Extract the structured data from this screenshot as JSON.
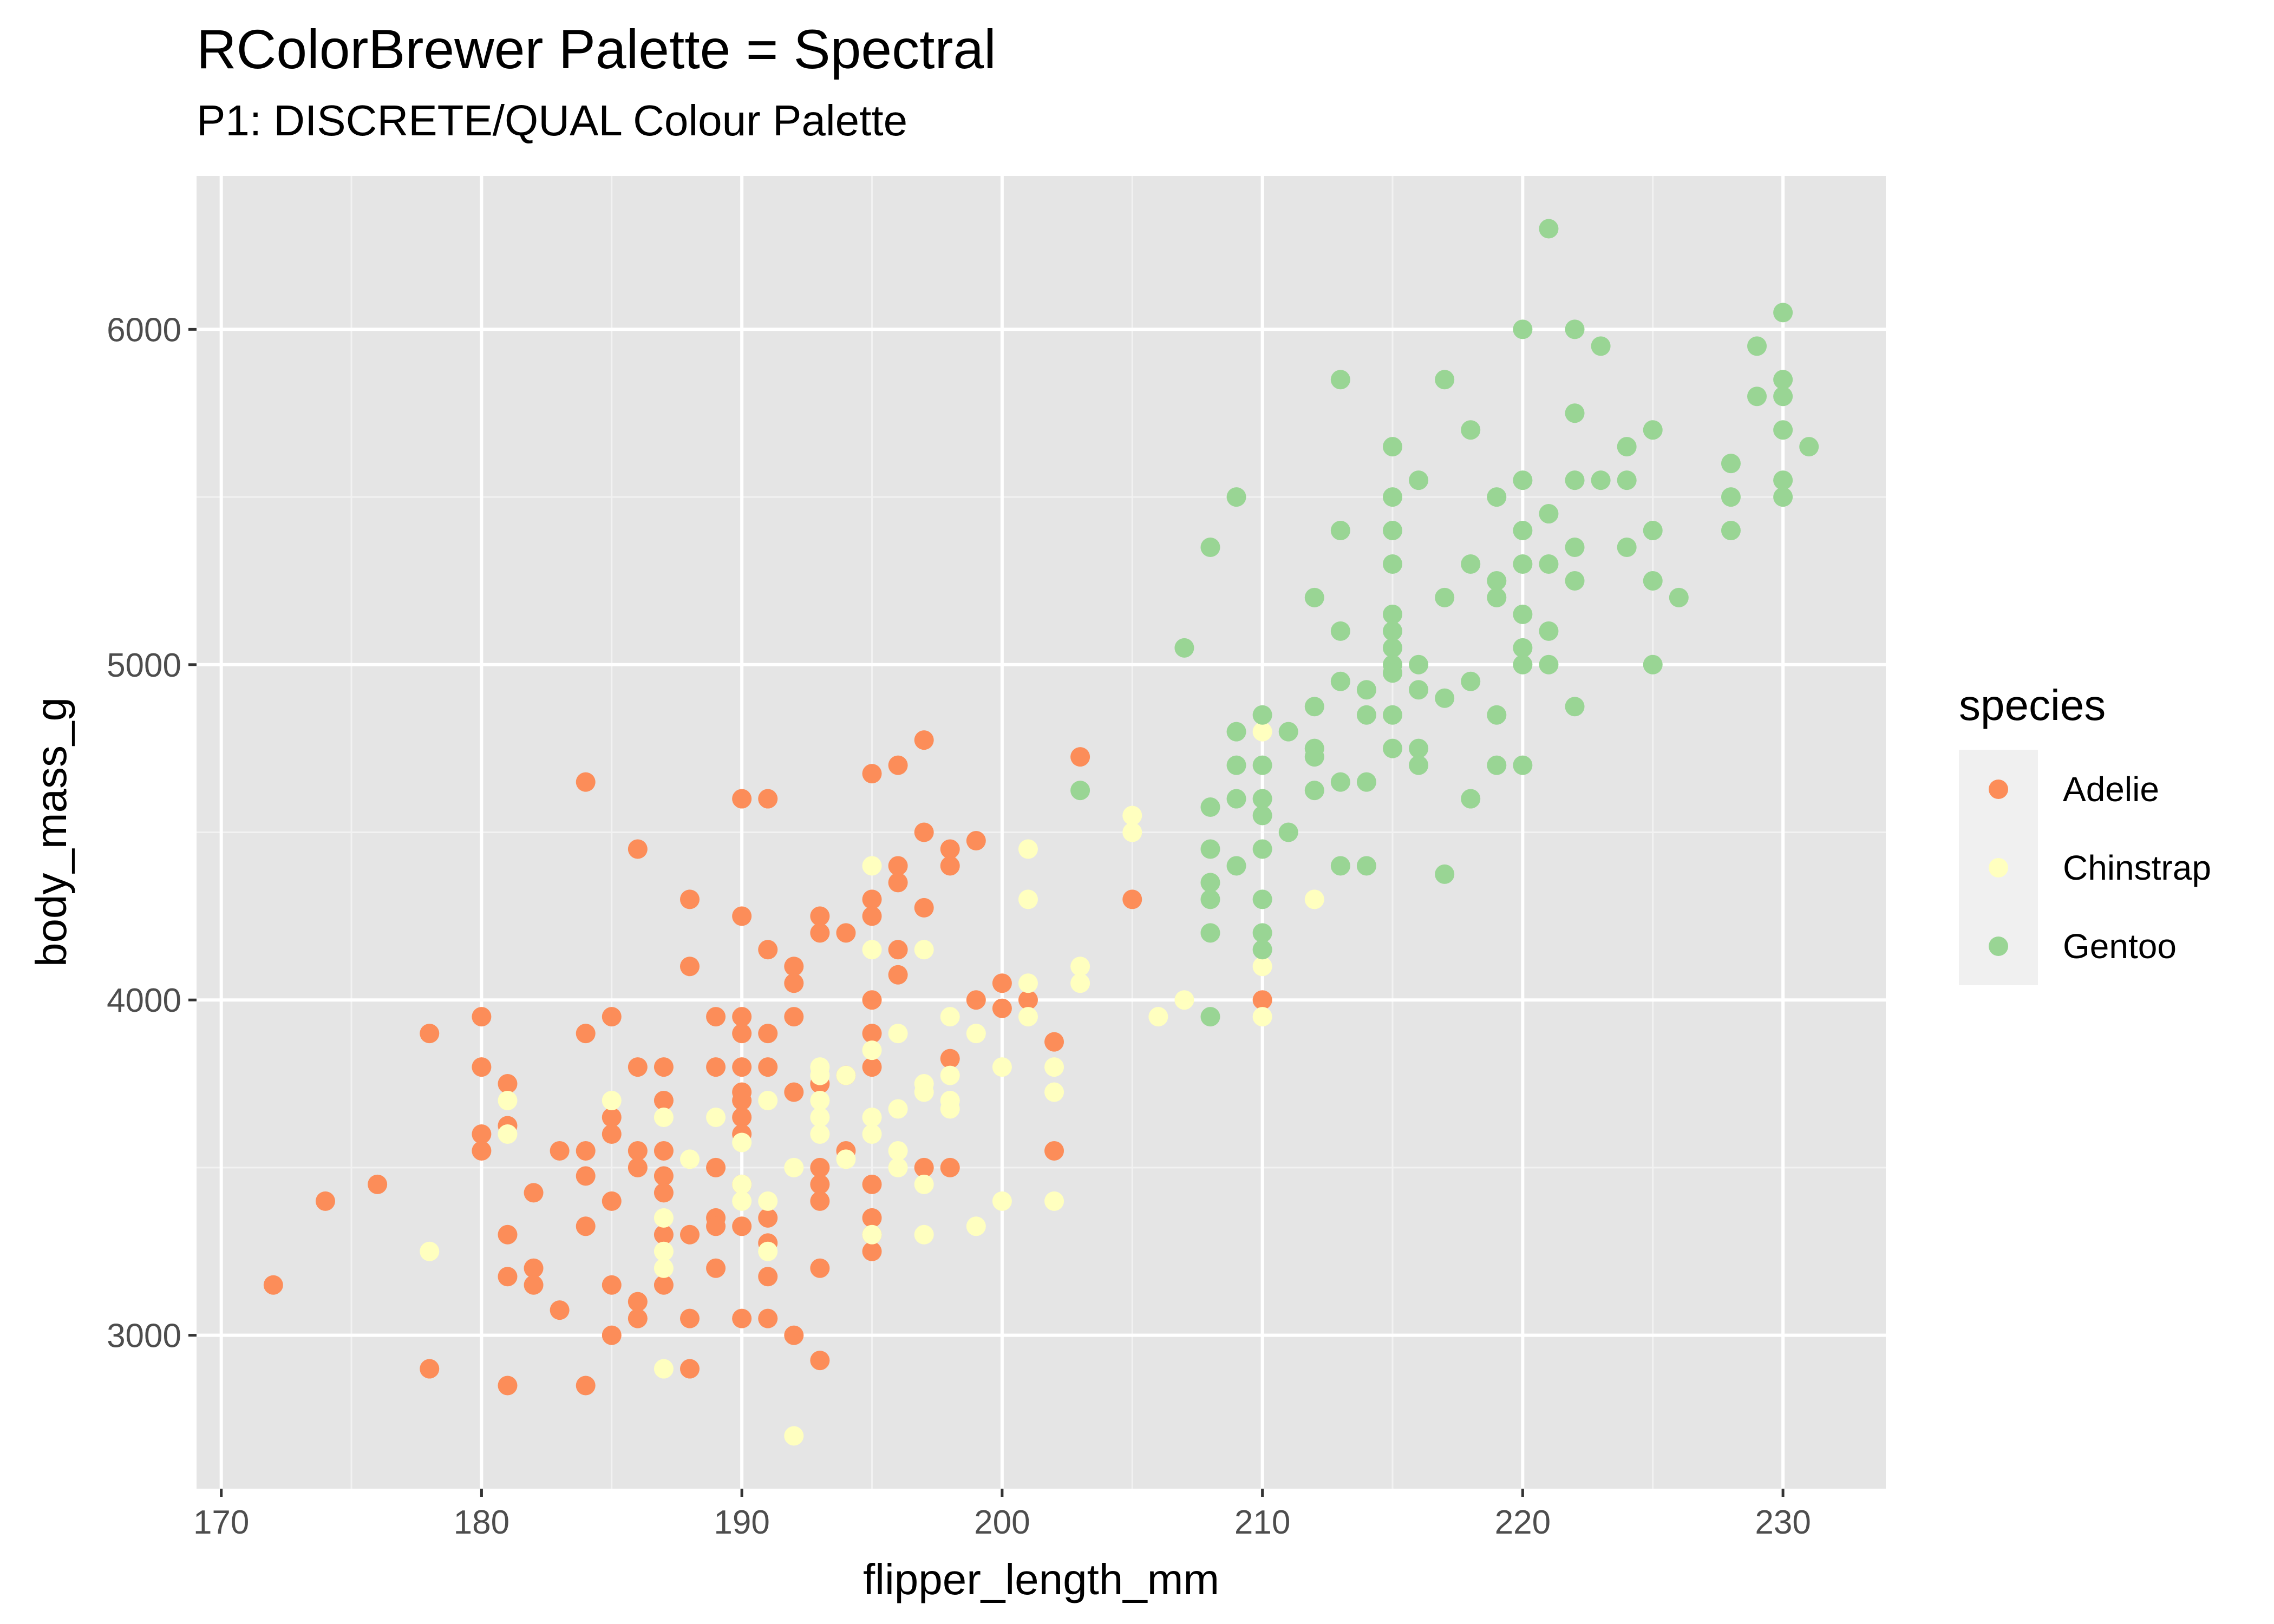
{
  "chart_data": {
    "type": "scatter",
    "title": "RColorBrewer Palette = Spectral",
    "subtitle": "P1: DISCRETE/QUAL Colour Palette",
    "xlabel": "flipper_length_mm",
    "ylabel": "body_mass_g",
    "xlim": [
      169.05,
      233.95
    ],
    "ylim": [
      2542.5,
      6457.5
    ],
    "x_ticks": [
      170,
      180,
      190,
      200,
      210,
      220,
      230
    ],
    "x_tick_labels": [
      "170",
      "180",
      "190",
      "200",
      "210",
      "220",
      "230"
    ],
    "y_ticks": [
      3000,
      4000,
      5000,
      6000
    ],
    "y_tick_labels": [
      "3000",
      "4000",
      "5000",
      "6000"
    ],
    "grid": true,
    "legend": {
      "title": "species",
      "position": "right"
    },
    "series": [
      {
        "name": "Adelie",
        "color": "#FC8D59",
        "points": [
          [
            172,
            3150
          ],
          [
            174,
            3400
          ],
          [
            176,
            3450
          ],
          [
            178,
            3900
          ],
          [
            178,
            2900
          ],
          [
            180,
            3950
          ],
          [
            180,
            3800
          ],
          [
            180,
            3600
          ],
          [
            180,
            3550
          ],
          [
            181,
            3750
          ],
          [
            181,
            3625
          ],
          [
            181,
            3300
          ],
          [
            181,
            3175
          ],
          [
            181,
            2850
          ],
          [
            182,
            3425
          ],
          [
            182,
            3200
          ],
          [
            182,
            3150
          ],
          [
            183,
            3550
          ],
          [
            183,
            3075
          ],
          [
            184,
            4650
          ],
          [
            184,
            3900
          ],
          [
            184,
            3550
          ],
          [
            184,
            3475
          ],
          [
            184,
            3325
          ],
          [
            184,
            2850
          ],
          [
            185,
            3950
          ],
          [
            185,
            3650
          ],
          [
            185,
            3600
          ],
          [
            185,
            3400
          ],
          [
            185,
            3150
          ],
          [
            185,
            3000
          ],
          [
            186,
            4450
          ],
          [
            186,
            3800
          ],
          [
            186,
            3550
          ],
          [
            186,
            3500
          ],
          [
            186,
            3100
          ],
          [
            186,
            3050
          ],
          [
            187,
            3800
          ],
          [
            187,
            3700
          ],
          [
            187,
            3550
          ],
          [
            187,
            3475
          ],
          [
            187,
            3425
          ],
          [
            187,
            3300
          ],
          [
            187,
            3150
          ],
          [
            188,
            4300
          ],
          [
            188,
            4100
          ],
          [
            188,
            3300
          ],
          [
            188,
            3050
          ],
          [
            188,
            2900
          ],
          [
            189,
            3950
          ],
          [
            189,
            3800
          ],
          [
            189,
            3500
          ],
          [
            189,
            3350
          ],
          [
            189,
            3325
          ],
          [
            189,
            3200
          ],
          [
            190,
            4600
          ],
          [
            190,
            4250
          ],
          [
            190,
            3950
          ],
          [
            190,
            3900
          ],
          [
            190,
            3800
          ],
          [
            190,
            3725
          ],
          [
            190,
            3700
          ],
          [
            190,
            3650
          ],
          [
            190,
            3600
          ],
          [
            190,
            3450
          ],
          [
            190,
            3325
          ],
          [
            190,
            3050
          ],
          [
            191,
            4600
          ],
          [
            191,
            4150
          ],
          [
            191,
            3900
          ],
          [
            191,
            3800
          ],
          [
            191,
            3350
          ],
          [
            191,
            3275
          ],
          [
            191,
            3175
          ],
          [
            191,
            3050
          ],
          [
            192,
            4100
          ],
          [
            192,
            4050
          ],
          [
            192,
            3950
          ],
          [
            192,
            3725
          ],
          [
            192,
            3000
          ],
          [
            193,
            4250
          ],
          [
            193,
            4200
          ],
          [
            193,
            3750
          ],
          [
            193,
            3500
          ],
          [
            193,
            3450
          ],
          [
            193,
            3400
          ],
          [
            193,
            3200
          ],
          [
            193,
            2925
          ],
          [
            194,
            4200
          ],
          [
            194,
            3775
          ],
          [
            194,
            3550
          ],
          [
            195,
            4675
          ],
          [
            195,
            4300
          ],
          [
            195,
            4250
          ],
          [
            195,
            4000
          ],
          [
            195,
            3450
          ],
          [
            195,
            3350
          ],
          [
            195,
            3300
          ],
          [
            195,
            3250
          ],
          [
            195,
            3800
          ],
          [
            195,
            3900
          ],
          [
            196,
            4700
          ],
          [
            196,
            4400
          ],
          [
            196,
            4350
          ],
          [
            196,
            4150
          ],
          [
            196,
            4075
          ],
          [
            197,
            4775
          ],
          [
            197,
            4500
          ],
          [
            197,
            4275
          ],
          [
            197,
            3500
          ],
          [
            198,
            4450
          ],
          [
            198,
            4400
          ],
          [
            198,
            3825
          ],
          [
            198,
            3500
          ],
          [
            199,
            4475
          ],
          [
            199,
            4000
          ],
          [
            200,
            4050
          ],
          [
            200,
            3975
          ],
          [
            201,
            4000
          ],
          [
            202,
            3875
          ],
          [
            202,
            3550
          ],
          [
            203,
            4725
          ],
          [
            205,
            4300
          ],
          [
            210,
            4000
          ]
        ]
      },
      {
        "name": "Chinstrap",
        "color": "#FFFFBF",
        "points": [
          [
            178,
            3250
          ],
          [
            181,
            3700
          ],
          [
            181,
            3600
          ],
          [
            185,
            3700
          ],
          [
            187,
            3650
          ],
          [
            187,
            3350
          ],
          [
            187,
            3250
          ],
          [
            187,
            3200
          ],
          [
            187,
            2900
          ],
          [
            188,
            3525
          ],
          [
            189,
            3650
          ],
          [
            190,
            3575
          ],
          [
            190,
            3450
          ],
          [
            190,
            3400
          ],
          [
            191,
            3700
          ],
          [
            191,
            3400
          ],
          [
            191,
            3250
          ],
          [
            192,
            3500
          ],
          [
            192,
            2700
          ],
          [
            193,
            3800
          ],
          [
            193,
            3775
          ],
          [
            193,
            3700
          ],
          [
            193,
            3650
          ],
          [
            193,
            3600
          ],
          [
            194,
            3775
          ],
          [
            194,
            3525
          ],
          [
            195,
            4400
          ],
          [
            195,
            4150
          ],
          [
            195,
            3850
          ],
          [
            195,
            3650
          ],
          [
            195,
            3600
          ],
          [
            195,
            3300
          ],
          [
            196,
            3900
          ],
          [
            196,
            3675
          ],
          [
            196,
            3550
          ],
          [
            196,
            3500
          ],
          [
            197,
            4150
          ],
          [
            197,
            3750
          ],
          [
            197,
            3725
          ],
          [
            197,
            3450
          ],
          [
            197,
            3300
          ],
          [
            198,
            3950
          ],
          [
            198,
            3775
          ],
          [
            198,
            3700
          ],
          [
            198,
            3675
          ],
          [
            199,
            3900
          ],
          [
            199,
            3325
          ],
          [
            200,
            3800
          ],
          [
            200,
            3400
          ],
          [
            201,
            4450
          ],
          [
            201,
            4300
          ],
          [
            201,
            4050
          ],
          [
            201,
            3950
          ],
          [
            202,
            3800
          ],
          [
            202,
            3725
          ],
          [
            202,
            3400
          ],
          [
            203,
            4100
          ],
          [
            203,
            4050
          ],
          [
            205,
            4550
          ],
          [
            205,
            4500
          ],
          [
            206,
            3950
          ],
          [
            207,
            4000
          ],
          [
            210,
            4800
          ],
          [
            210,
            4100
          ],
          [
            210,
            3950
          ],
          [
            212,
            4300
          ]
        ]
      },
      {
        "name": "Gentoo",
        "color": "#99D594",
        "points": [
          [
            203,
            4625
          ],
          [
            207,
            5050
          ],
          [
            208,
            5350
          ],
          [
            208,
            4575
          ],
          [
            208,
            4450
          ],
          [
            208,
            4350
          ],
          [
            208,
            4300
          ],
          [
            208,
            4200
          ],
          [
            208,
            3950
          ],
          [
            209,
            5500
          ],
          [
            209,
            4800
          ],
          [
            209,
            4700
          ],
          [
            209,
            4600
          ],
          [
            209,
            4400
          ],
          [
            210,
            4850
          ],
          [
            210,
            4700
          ],
          [
            210,
            4600
          ],
          [
            210,
            4550
          ],
          [
            210,
            4450
          ],
          [
            210,
            4300
          ],
          [
            210,
            4200
          ],
          [
            210,
            4150
          ],
          [
            211,
            4800
          ],
          [
            211,
            4500
          ],
          [
            212,
            5200
          ],
          [
            212,
            4875
          ],
          [
            212,
            4750
          ],
          [
            212,
            4725
          ],
          [
            212,
            4625
          ],
          [
            213,
            5850
          ],
          [
            213,
            5400
          ],
          [
            213,
            5100
          ],
          [
            213,
            4950
          ],
          [
            213,
            4650
          ],
          [
            213,
            4400
          ],
          [
            214,
            4925
          ],
          [
            214,
            4850
          ],
          [
            214,
            4650
          ],
          [
            214,
            4400
          ],
          [
            215,
            5650
          ],
          [
            215,
            5500
          ],
          [
            215,
            5400
          ],
          [
            215,
            5300
          ],
          [
            215,
            5150
          ],
          [
            215,
            5100
          ],
          [
            215,
            5050
          ],
          [
            215,
            5000
          ],
          [
            215,
            4975
          ],
          [
            215,
            4850
          ],
          [
            215,
            4750
          ],
          [
            216,
            5550
          ],
          [
            216,
            5000
          ],
          [
            216,
            4925
          ],
          [
            216,
            4750
          ],
          [
            216,
            4700
          ],
          [
            217,
            5850
          ],
          [
            217,
            5200
          ],
          [
            217,
            4900
          ],
          [
            217,
            4375
          ],
          [
            218,
            5700
          ],
          [
            218,
            5300
          ],
          [
            218,
            4950
          ],
          [
            218,
            4600
          ],
          [
            219,
            5500
          ],
          [
            219,
            5250
          ],
          [
            219,
            5200
          ],
          [
            219,
            4850
          ],
          [
            219,
            4700
          ],
          [
            220,
            6000
          ],
          [
            220,
            5550
          ],
          [
            220,
            5400
          ],
          [
            220,
            5300
          ],
          [
            220,
            5150
          ],
          [
            220,
            5050
          ],
          [
            220,
            5000
          ],
          [
            220,
            4700
          ],
          [
            221,
            6300
          ],
          [
            221,
            5450
          ],
          [
            221,
            5300
          ],
          [
            221,
            5100
          ],
          [
            221,
            5000
          ],
          [
            222,
            6000
          ],
          [
            222,
            5750
          ],
          [
            222,
            5550
          ],
          [
            222,
            5350
          ],
          [
            222,
            5250
          ],
          [
            222,
            4875
          ],
          [
            223,
            5950
          ],
          [
            223,
            5550
          ],
          [
            224,
            5650
          ],
          [
            224,
            5550
          ],
          [
            224,
            5350
          ],
          [
            225,
            5700
          ],
          [
            225,
            5400
          ],
          [
            225,
            5250
          ],
          [
            225,
            5000
          ],
          [
            226,
            5200
          ],
          [
            228,
            5600
          ],
          [
            228,
            5500
          ],
          [
            228,
            5400
          ],
          [
            229,
            5950
          ],
          [
            229,
            5800
          ],
          [
            230,
            6050
          ],
          [
            230,
            5850
          ],
          [
            230,
            5800
          ],
          [
            230,
            5700
          ],
          [
            230,
            5550
          ],
          [
            230,
            5500
          ],
          [
            231,
            5650
          ]
        ]
      }
    ]
  }
}
